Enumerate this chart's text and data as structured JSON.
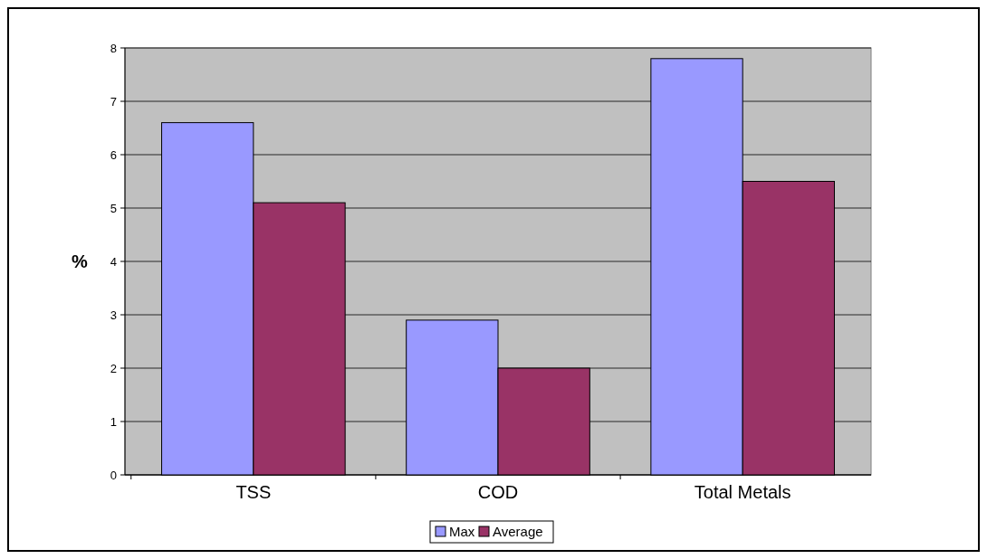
{
  "chart_data": {
    "type": "bar",
    "ylabel": "%",
    "categories": [
      "TSS",
      "COD",
      "Total Metals"
    ],
    "series": [
      {
        "name": "Max",
        "color": "#9999ff",
        "values": [
          6.6,
          2.9,
          7.8
        ]
      },
      {
        "name": "Average",
        "color": "#993366",
        "values": [
          5.1,
          2.0,
          5.5
        ]
      }
    ],
    "ylim": [
      0,
      8
    ],
    "yticks": [
      0,
      1,
      2,
      3,
      4,
      5,
      6,
      7,
      8
    ],
    "grid": "y",
    "legend": "bottom"
  }
}
